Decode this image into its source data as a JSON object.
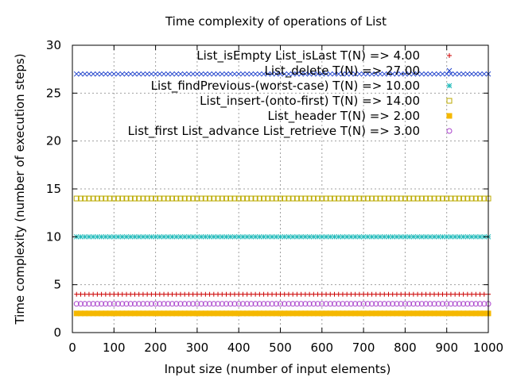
{
  "chart_data": {
    "type": "scatter",
    "title": "Time complexity of operations of List",
    "xlabel": "Input size (number of input elements)",
    "ylabel": "Time complexity (number of execution steps)",
    "xlim": [
      0,
      1000
    ],
    "ylim": [
      0,
      30
    ],
    "xticks": [
      0,
      100,
      200,
      300,
      400,
      500,
      600,
      700,
      800,
      900,
      1000
    ],
    "yticks": [
      0,
      5,
      10,
      15,
      20,
      25,
      30
    ],
    "grid": true,
    "legend_position": "top-right",
    "x_start": 10,
    "x_step": 10,
    "series": [
      {
        "name": "List_isEmpty List_isLast T(N) => 4.00",
        "value": 4,
        "color": "#cc0000",
        "marker": "plus"
      },
      {
        "name": "List_delete T(N) => 27.00",
        "value": 27,
        "color": "#2244cc",
        "marker": "cross"
      },
      {
        "name": "List_findPrevious-(worst-case) T(N) => 10.00",
        "value": 10,
        "color": "#22bbbb",
        "marker": "star"
      },
      {
        "name": "List_insert-(onto-first) T(N) => 14.00",
        "value": 14,
        "color": "#bbaa00",
        "marker": "square-open"
      },
      {
        "name": "List_header T(N) => 2.00",
        "value": 2,
        "color": "#f5b800",
        "marker": "square-filled"
      },
      {
        "name": "List_first List_advance List_retrieve T(N) => 3.00",
        "value": 3,
        "color": "#aa44cc",
        "marker": "circle-open"
      }
    ]
  }
}
